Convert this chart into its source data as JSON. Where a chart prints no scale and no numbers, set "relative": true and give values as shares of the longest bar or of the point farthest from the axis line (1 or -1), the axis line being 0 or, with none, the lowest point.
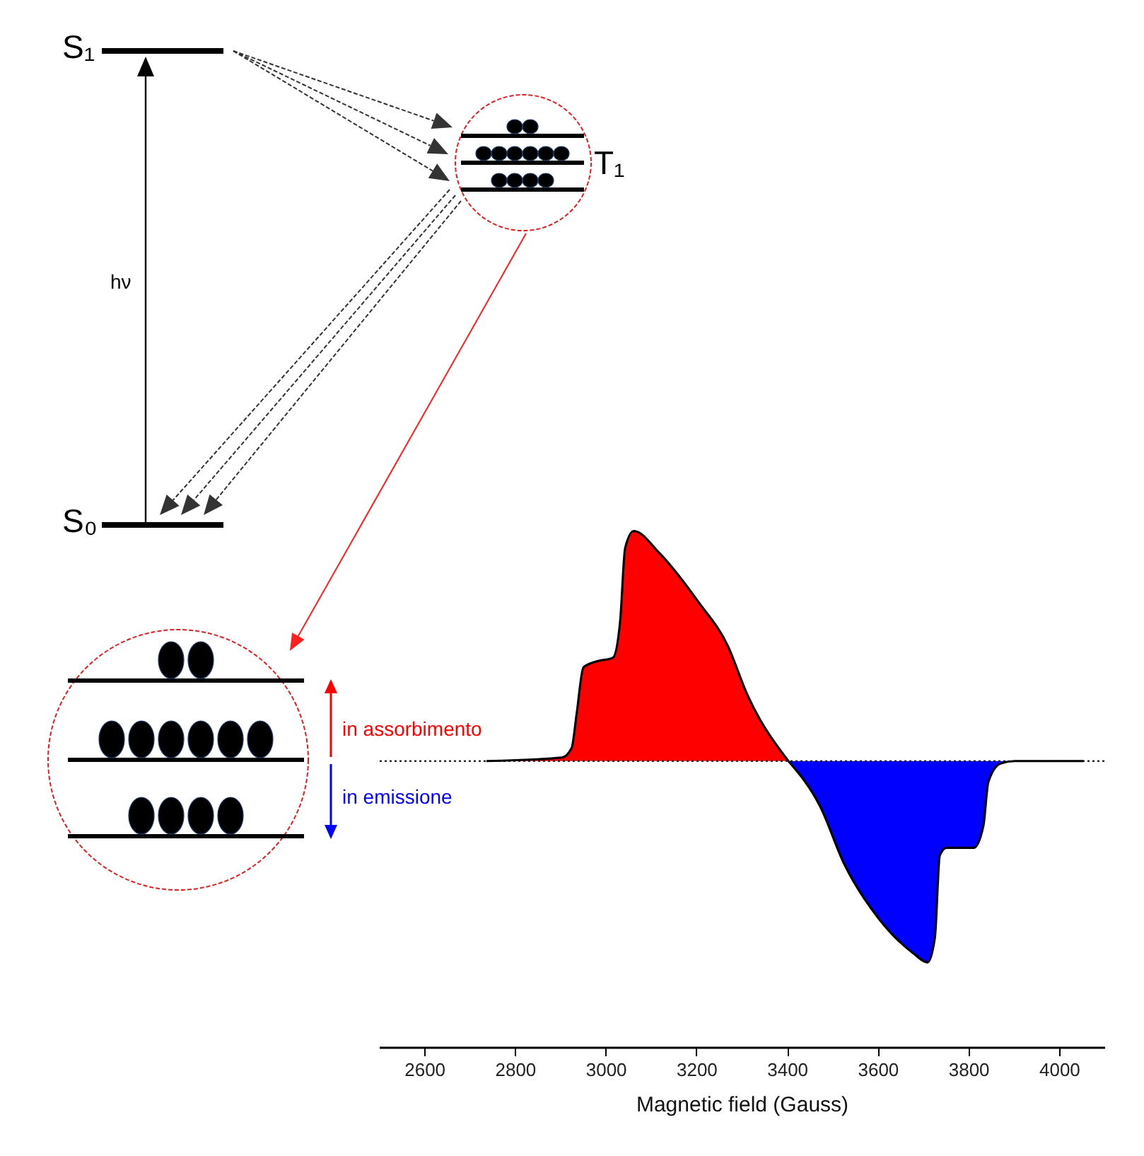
{
  "chart_data": {
    "type": "area",
    "xlabel": "Magnetic field (Gauss)",
    "relative": true,
    "xlim": [
      2500,
      4100
    ],
    "xticks": [
      2600,
      2800,
      3000,
      3200,
      3400,
      3600,
      3800,
      4000
    ],
    "grid": false,
    "series": [
      {
        "color": "#ff0000",
        "x": [
          2737,
          2903,
          2925,
          2936,
          2951,
          2978,
          3016,
          3032,
          3043,
          3062,
          3118,
          3204,
          3269,
          3312,
          3403
        ],
        "values": [
          0,
          0.015,
          0.057,
          0.205,
          0.407,
          0.432,
          0.449,
          0.608,
          0.926,
          1,
          0.905,
          0.693,
          0.502,
          0.29,
          0
        ]
      },
      {
        "color": "#0000ff",
        "x": [
          3403,
          3473,
          3527,
          3602,
          3677,
          3710,
          3726,
          3737,
          3752,
          3812,
          3833,
          3844,
          3871,
          3903,
          4054
        ],
        "values": [
          0,
          -0.197,
          -0.451,
          -0.684,
          -0.833,
          -0.875,
          -0.769,
          -0.409,
          -0.377,
          -0.377,
          -0.282,
          -0.091,
          -0.011,
          0,
          0
        ]
      }
    ],
    "ref_lines": [
      {
        "axis": "y",
        "value": 0,
        "color": "#000000",
        "line_style": "dotted"
      }
    ],
    "annotations": [
      "S₁",
      "T₁",
      "S₀",
      "hν",
      "in assorbimento",
      "in emissione"
    ]
  }
}
